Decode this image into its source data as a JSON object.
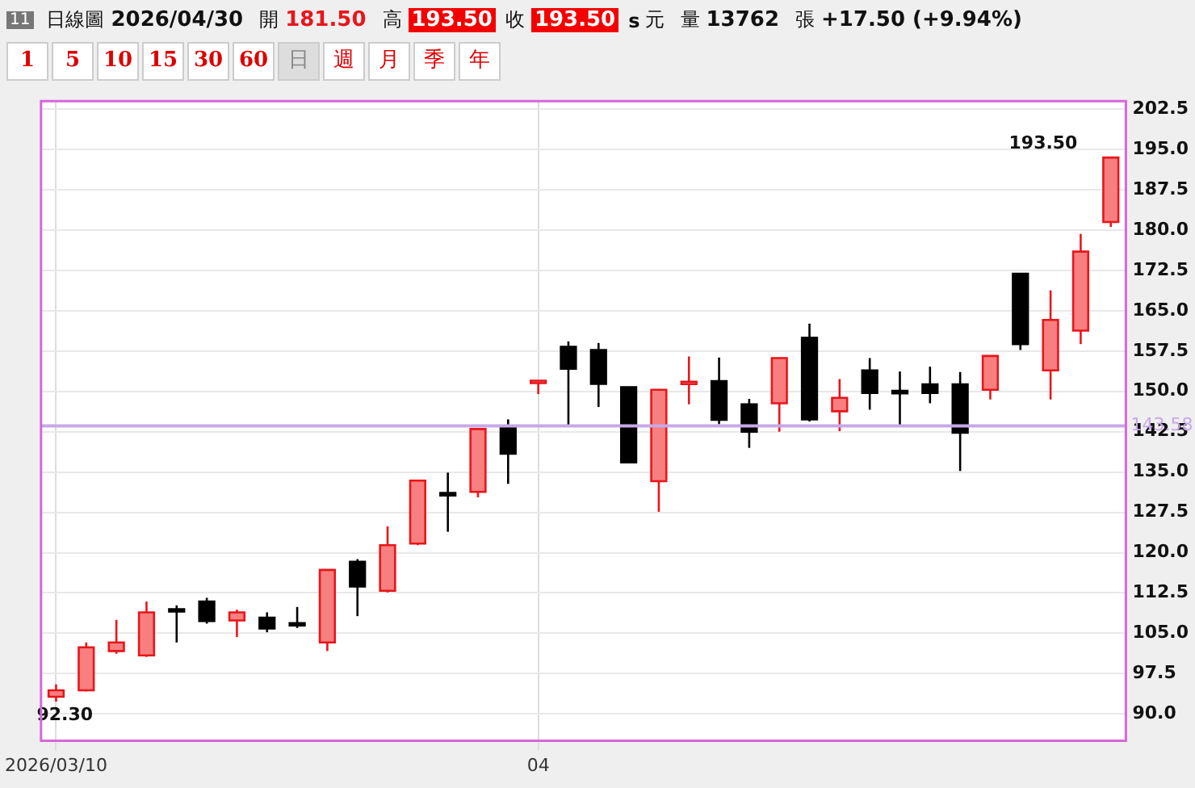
{
  "chart_data": {
    "type": "candlestick",
    "categories": [
      "2026/03/10",
      null,
      null,
      null,
      null,
      null,
      null,
      null,
      null,
      null,
      null,
      null,
      null,
      null,
      null,
      null,
      "04",
      null,
      null,
      null,
      null,
      null,
      null,
      null,
      null,
      null,
      null,
      null,
      null,
      null,
      null,
      null,
      null,
      null,
      null,
      null
    ],
    "ohlc": [
      [
        93.2,
        95.5,
        92.3,
        94.4
      ],
      [
        94.4,
        103.3,
        94.2,
        102.4
      ],
      [
        101.7,
        107.5,
        101.2,
        103.3
      ],
      [
        100.9,
        110.9,
        100.6,
        108.9
      ],
      [
        109.5,
        110.2,
        103.3,
        109.4
      ],
      [
        110.9,
        111.6,
        106.8,
        107.3
      ],
      [
        107.4,
        109.4,
        104.3,
        108.9
      ],
      [
        107.9,
        108.9,
        105.2,
        105.9
      ],
      [
        106.9,
        109.9,
        106.0,
        106.8
      ],
      [
        103.3,
        116.8,
        101.7,
        116.8
      ],
      [
        118.3,
        118.8,
        108.2,
        113.7
      ],
      [
        112.9,
        124.9,
        112.6,
        121.4
      ],
      [
        121.7,
        133.4,
        121.4,
        133.4
      ],
      [
        131.1,
        134.9,
        123.9,
        131.0
      ],
      [
        131.3,
        143.2,
        130.3,
        143.0
      ],
      [
        143.2,
        144.8,
        132.8,
        138.4
      ],
      [
        151.6,
        152.0,
        149.5,
        152.0
      ],
      [
        158.3,
        159.3,
        143.8,
        154.2
      ],
      [
        157.7,
        159.0,
        147.1,
        151.4
      ],
      [
        150.8,
        150.8,
        136.8,
        136.8
      ],
      [
        133.3,
        150.3,
        127.6,
        150.3
      ],
      [
        151.6,
        156.5,
        147.6,
        151.8
      ],
      [
        151.9,
        156.3,
        143.9,
        144.7
      ],
      [
        147.6,
        148.6,
        139.5,
        142.5
      ],
      [
        147.8,
        156.2,
        142.5,
        156.2
      ],
      [
        160.0,
        162.6,
        144.4,
        144.8
      ],
      [
        146.3,
        152.3,
        142.6,
        148.8
      ],
      [
        153.9,
        156.2,
        146.6,
        149.7
      ],
      [
        150.1,
        153.7,
        143.8,
        150.0
      ],
      [
        151.3,
        154.6,
        147.8,
        149.7
      ],
      [
        151.3,
        153.6,
        135.2,
        142.3
      ],
      [
        150.3,
        156.6,
        148.5,
        156.6
      ],
      [
        171.9,
        171.9,
        157.7,
        158.8
      ],
      [
        153.9,
        168.8,
        148.5,
        163.3
      ],
      [
        161.3,
        179.3,
        158.8,
        176.0
      ],
      [
        181.5,
        193.5,
        180.6,
        193.5
      ]
    ],
    "ylim": [
      85.0,
      204.0
    ],
    "yticks": [
      {
        "value": 90,
        "label": "90.0"
      },
      {
        "value": 97.5,
        "label": "97.5"
      },
      {
        "value": 105,
        "label": "105.0"
      },
      {
        "value": 112.5,
        "label": "112.5"
      },
      {
        "value": 120,
        "label": "120.0"
      },
      {
        "value": 127.5,
        "label": "127.5"
      },
      {
        "value": 135,
        "label": "135.0"
      },
      {
        "value": 142.5,
        "label": "142.5"
      },
      {
        "value": 150,
        "label": "150.0"
      },
      {
        "value": 157.5,
        "label": "157.5"
      },
      {
        "value": 165,
        "label": "165.0"
      },
      {
        "value": 172.5,
        "label": "172.5"
      },
      {
        "value": 180,
        "label": "180.0"
      },
      {
        "value": 187.5,
        "label": "187.5"
      },
      {
        "value": 195,
        "label": "195.0"
      },
      {
        "value": 202.5,
        "label": "202.5"
      }
    ],
    "grid": true,
    "legend": false,
    "ref_lines": [
      {
        "axis": "y",
        "value": 143.58,
        "label": "143.58",
        "color": "#c8a8e8"
      }
    ],
    "annotations": [
      "11",
      "日線圖",
      "2026/04/30",
      "開",
      "181.50",
      "高",
      "193.50",
      "收",
      "193.50",
      "s",
      "元",
      "量",
      "13762",
      "張",
      "+17.50 (+9.94%)",
      "1",
      "5",
      "10",
      "15",
      "30",
      "60",
      "日",
      "週",
      "月",
      "季",
      "年",
      "193.50",
      "92.30"
    ]
  }
}
